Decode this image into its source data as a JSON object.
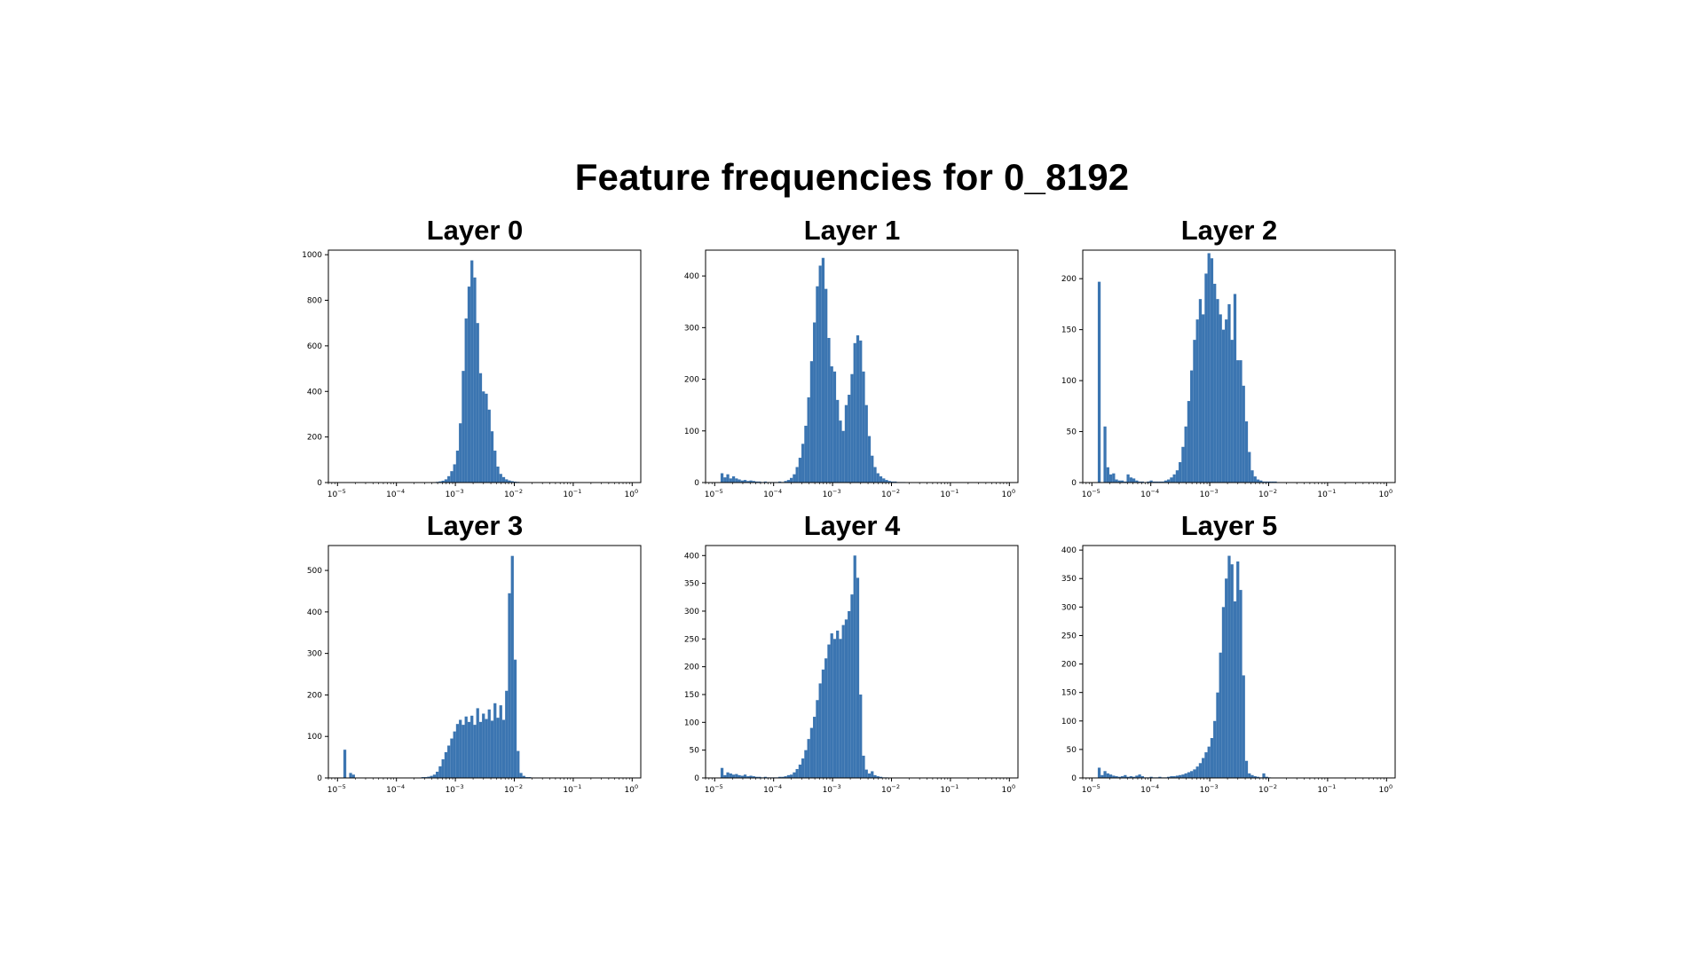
{
  "figure": {
    "title": "Feature frequencies for 0_8192"
  },
  "colors": {
    "bar": "#3b75b1",
    "axes": "#000000",
    "background": "#ffffff"
  },
  "chart_data": [
    {
      "type": "bar",
      "title": "Layer 0",
      "x_scale": "log",
      "xlim": [
        7e-06,
        1.4
      ],
      "x_ticks": [
        "10",
        "10",
        "10",
        "10",
        "10",
        "10"
      ],
      "x_tick_exponents": [
        "−5",
        "−4",
        "−3",
        "−2",
        "−1",
        "0"
      ],
      "y_ticks": [
        "0",
        "200",
        "400",
        "600",
        "800",
        "1000"
      ],
      "y_tick_values": [
        0,
        200,
        400,
        600,
        800,
        1000
      ],
      "ylim": [
        0,
        1020
      ],
      "bins_log10_range": [
        -4.9,
        0
      ],
      "bin_count": 100,
      "counts": [
        0,
        0,
        0,
        0,
        0,
        0,
        0,
        0,
        0,
        0,
        0,
        0,
        0,
        0,
        0,
        0,
        0,
        0,
        0,
        0,
        0,
        0,
        0,
        0,
        0,
        0,
        0,
        0,
        0,
        0,
        1,
        2,
        3,
        5,
        8,
        14,
        28,
        50,
        80,
        140,
        260,
        490,
        720,
        860,
        975,
        900,
        700,
        480,
        400,
        390,
        320,
        225,
        140,
        70,
        38,
        24,
        14,
        9,
        6,
        4,
        3,
        2,
        2,
        1,
        1,
        1,
        0,
        0,
        0,
        0,
        0,
        0,
        0,
        0,
        0,
        0,
        0,
        0,
        0,
        0,
        0,
        0,
        0,
        0,
        0,
        0,
        0,
        0,
        0,
        0,
        0,
        0,
        0,
        0,
        0,
        0,
        0,
        0,
        0,
        0
      ]
    },
    {
      "type": "bar",
      "title": "Layer 1",
      "x_scale": "log",
      "xlim": [
        7e-06,
        1.4
      ],
      "x_ticks": [
        "10",
        "10",
        "10",
        "10",
        "10",
        "10"
      ],
      "x_tick_exponents": [
        "−5",
        "−4",
        "−3",
        "−2",
        "−1",
        "0"
      ],
      "y_ticks": [
        "0",
        "100",
        "200",
        "300",
        "400"
      ],
      "y_tick_values": [
        0,
        100,
        200,
        300,
        400
      ],
      "ylim": [
        0,
        450
      ],
      "bins_log10_range": [
        -4.9,
        0
      ],
      "bin_count": 100,
      "counts": [
        18,
        10,
        16,
        8,
        12,
        8,
        6,
        4,
        5,
        3,
        4,
        3,
        2,
        2,
        1,
        2,
        1,
        1,
        1,
        1,
        2,
        1,
        3,
        5,
        9,
        16,
        30,
        48,
        75,
        110,
        165,
        235,
        310,
        380,
        420,
        435,
        375,
        280,
        225,
        215,
        160,
        120,
        100,
        150,
        170,
        210,
        270,
        285,
        275,
        215,
        150,
        90,
        52,
        30,
        18,
        12,
        8,
        5,
        3,
        2,
        2,
        1,
        1,
        1,
        0,
        0,
        0,
        0,
        0,
        0,
        0,
        0,
        0,
        0,
        0,
        0,
        0,
        0,
        0,
        0,
        0,
        0,
        0,
        0,
        0,
        0,
        0,
        0,
        0,
        0,
        0,
        0,
        0,
        0,
        0,
        0,
        0,
        0,
        0,
        0
      ]
    },
    {
      "type": "bar",
      "title": "Layer 2",
      "x_scale": "log",
      "xlim": [
        7e-06,
        1.4
      ],
      "x_ticks": [
        "10",
        "10",
        "10",
        "10",
        "10",
        "10"
      ],
      "x_tick_exponents": [
        "−5",
        "−4",
        "−3",
        "−2",
        "−1",
        "0"
      ],
      "y_ticks": [
        "0",
        "50",
        "100",
        "150",
        "200"
      ],
      "y_tick_values": [
        0,
        50,
        100,
        150,
        200
      ],
      "ylim": [
        0,
        228
      ],
      "bins_log10_range": [
        -4.9,
        0
      ],
      "bin_count": 100,
      "counts": [
        197,
        0,
        55,
        15,
        8,
        9,
        3,
        2,
        2,
        1,
        8,
        5,
        4,
        2,
        1,
        1,
        0,
        1,
        2,
        1,
        1,
        1,
        1,
        2,
        3,
        5,
        8,
        12,
        20,
        35,
        55,
        80,
        110,
        140,
        160,
        180,
        165,
        205,
        225,
        220,
        195,
        180,
        165,
        150,
        160,
        175,
        140,
        185,
        120,
        120,
        95,
        60,
        30,
        12,
        6,
        3,
        2,
        1,
        1,
        1,
        1,
        1,
        0,
        0,
        0,
        0,
        0,
        0,
        0,
        0,
        0,
        0,
        0,
        0,
        0,
        0,
        0,
        0,
        0,
        0,
        0,
        0,
        0,
        0,
        0,
        0,
        0,
        0,
        0,
        0,
        0,
        0,
        0,
        0,
        0,
        0,
        0,
        0,
        0,
        0
      ]
    },
    {
      "type": "bar",
      "title": "Layer 3",
      "x_scale": "log",
      "xlim": [
        7e-06,
        1.4
      ],
      "x_ticks": [
        "10",
        "10",
        "10",
        "10",
        "10",
        "10"
      ],
      "x_tick_exponents": [
        "−5",
        "−4",
        "−3",
        "−2",
        "−1",
        "0"
      ],
      "y_ticks": [
        "0",
        "100",
        "200",
        "300",
        "400",
        "500"
      ],
      "y_tick_values": [
        0,
        100,
        200,
        300,
        400,
        500
      ],
      "ylim": [
        0,
        560
      ],
      "bins_log10_range": [
        -4.9,
        0
      ],
      "bin_count": 100,
      "counts": [
        68,
        0,
        12,
        8,
        0,
        0,
        0,
        0,
        0,
        0,
        0,
        0,
        0,
        0,
        0,
        0,
        0,
        0,
        0,
        0,
        0,
        0,
        0,
        0,
        1,
        1,
        1,
        2,
        2,
        3,
        5,
        8,
        15,
        28,
        45,
        62,
        78,
        95,
        112,
        130,
        140,
        128,
        148,
        135,
        150,
        128,
        168,
        135,
        155,
        142,
        165,
        138,
        180,
        145,
        175,
        140,
        210,
        445,
        535,
        285,
        65,
        12,
        5,
        2,
        2,
        1,
        1,
        0,
        0,
        0,
        0,
        0,
        0,
        0,
        0,
        0,
        0,
        0,
        0,
        0,
        0,
        0,
        0,
        0,
        0,
        0,
        0,
        0,
        0,
        0,
        0,
        0,
        0,
        0,
        0,
        0,
        0,
        0,
        0,
        0
      ]
    },
    {
      "type": "bar",
      "title": "Layer 4",
      "x_scale": "log",
      "xlim": [
        7e-06,
        1.4
      ],
      "x_ticks": [
        "10",
        "10",
        "10",
        "10",
        "10",
        "10"
      ],
      "x_tick_exponents": [
        "−5",
        "−4",
        "−3",
        "−2",
        "−1",
        "0"
      ],
      "y_ticks": [
        "0",
        "50",
        "100",
        "150",
        "200",
        "250",
        "300",
        "350",
        "400"
      ],
      "y_tick_values": [
        0,
        50,
        100,
        150,
        200,
        250,
        300,
        350,
        400
      ],
      "ylim": [
        0,
        418
      ],
      "bins_log10_range": [
        -4.9,
        0
      ],
      "bin_count": 100,
      "counts": [
        18,
        5,
        10,
        8,
        6,
        7,
        5,
        4,
        6,
        3,
        4,
        3,
        2,
        2,
        1,
        2,
        1,
        1,
        1,
        1,
        2,
        2,
        3,
        5,
        6,
        10,
        16,
        24,
        35,
        50,
        70,
        90,
        110,
        140,
        170,
        195,
        215,
        240,
        260,
        250,
        265,
        250,
        275,
        285,
        300,
        330,
        400,
        360,
        150,
        40,
        15,
        8,
        12,
        5,
        3,
        2,
        1,
        1,
        0,
        0,
        0,
        0,
        0,
        0,
        0,
        0,
        0,
        0,
        0,
        0,
        0,
        0,
        0,
        0,
        0,
        0,
        0,
        0,
        0,
        0,
        0,
        0,
        0,
        0,
        0,
        0,
        0,
        0,
        0,
        0,
        0,
        0,
        0,
        0,
        0,
        0,
        0,
        0,
        0,
        0
      ]
    },
    {
      "type": "bar",
      "title": "Layer 5",
      "x_scale": "log",
      "xlim": [
        7e-06,
        1.4
      ],
      "x_ticks": [
        "10",
        "10",
        "10",
        "10",
        "10",
        "10"
      ],
      "x_tick_exponents": [
        "−5",
        "−4",
        "−3",
        "−2",
        "−1",
        "0"
      ],
      "y_ticks": [
        "0",
        "50",
        "100",
        "150",
        "200",
        "250",
        "300",
        "350",
        "400"
      ],
      "y_tick_values": [
        0,
        50,
        100,
        150,
        200,
        250,
        300,
        350,
        400
      ],
      "ylim": [
        0,
        408
      ],
      "bins_log10_range": [
        -4.9,
        0
      ],
      "bin_count": 100,
      "counts": [
        18,
        5,
        12,
        8,
        6,
        4,
        3,
        2,
        3,
        5,
        2,
        3,
        2,
        4,
        6,
        3,
        1,
        1,
        2,
        1,
        1,
        2,
        1,
        1,
        2,
        3,
        3,
        4,
        5,
        6,
        8,
        10,
        12,
        15,
        20,
        26,
        35,
        45,
        55,
        70,
        100,
        150,
        220,
        300,
        350,
        390,
        375,
        310,
        380,
        330,
        180,
        30,
        8,
        5,
        3,
        2,
        1,
        8,
        2,
        1,
        0,
        0,
        0,
        0,
        0,
        0,
        0,
        0,
        0,
        0,
        0,
        0,
        0,
        0,
        0,
        0,
        0,
        0,
        0,
        0,
        0,
        0,
        0,
        0,
        0,
        0,
        0,
        0,
        0,
        0,
        0,
        0,
        0,
        0,
        0,
        0,
        0,
        0,
        0,
        0
      ]
    }
  ]
}
